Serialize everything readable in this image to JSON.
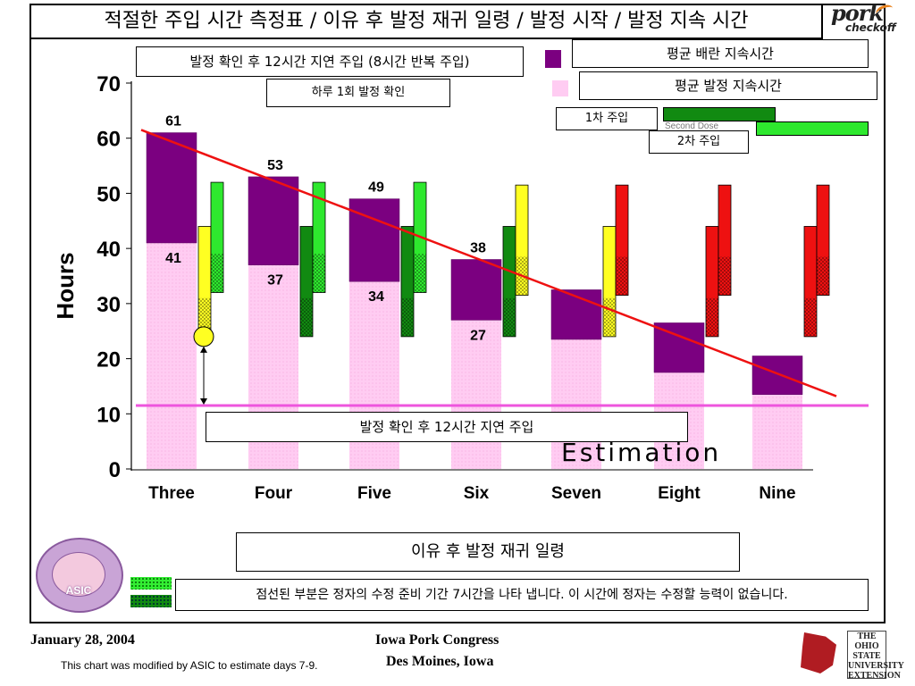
{
  "header": {
    "title": "적절한 주입 시간 측정표 / 이유 후 발정 재귀 일령 / 발정 시작 / 발정 지속 시간",
    "logo_main": "pork",
    "logo_sub": "checkoff"
  },
  "annotations": {
    "top_box": "발정 확인 후 12시간 지연 주입 (8시간 반복 주입)",
    "daily_check": "하루 1회 발정 확인",
    "mid_box": "발정 확인 후 12시간 지연 주입",
    "bottom_box": "이유 후 발정 재귀 일령",
    "note": "점선된 부분은 정자의 수정 준비 기간 7시간을 나타 냅니다. 이 시간에 정자는 수정할 능력이 없습니다.",
    "estimation": "Estimation"
  },
  "legend": {
    "ovulation": "평균 배란 지속시간",
    "estrus": "평균 발정 지속시간",
    "first_dose": "1차 주입",
    "second_dose": "2차 주입",
    "hidden_second_dose": "Second Dose",
    "colors": {
      "ovulation": "#7b0080",
      "estrus": "#ffccf2",
      "first_dose": "#118a11",
      "second_dose": "#2ee82e"
    }
  },
  "asic_logo": {
    "text": "ASIC"
  },
  "footer": {
    "date": "January 28, 2004",
    "note": "This chart was modified by ASIC to estimate days 7-9.",
    "event": "Iowa Pork Congress",
    "place": "Des Moines, Iowa",
    "osu_text": "THE OHIO STATE UNIVERSITY EXTENSION"
  },
  "chart_data": {
    "type": "bar",
    "ylabel": "Hours",
    "ylim": [
      0,
      70
    ],
    "yticks": [
      0,
      10,
      20,
      30,
      40,
      50,
      60,
      70
    ],
    "categories": [
      "Three",
      "Four",
      "Five",
      "Six",
      "Seven",
      "Eight",
      "Nine"
    ],
    "series": [
      {
        "name": "평균 발정 지속시간",
        "values": [
          61,
          53,
          49,
          38,
          32.5,
          26.5,
          20.5
        ],
        "color": "#ffccf2"
      },
      {
        "name": "평균 배란 지속시간",
        "values": [
          41,
          37,
          34,
          27,
          23.5,
          17.5,
          13.5
        ],
        "color": "#7b0080"
      }
    ],
    "labels": {
      "estrus_top": [
        61,
        53,
        49,
        38,
        null,
        null,
        null
      ],
      "ovulation_start": [
        41,
        37,
        34,
        27,
        null,
        null,
        null
      ]
    },
    "dose_ranges": [
      {
        "category": "Three",
        "first": [
          24,
          44
        ],
        "second": [
          32,
          52
        ],
        "first_color": "#ffff22",
        "second_color": "#2ee82e"
      },
      {
        "category": "Four",
        "first": [
          24,
          44
        ],
        "second": [
          32,
          52
        ],
        "first_color": "#118a11",
        "second_color": "#2ee82e"
      },
      {
        "category": "Five",
        "first": [
          24,
          44
        ],
        "second": [
          32,
          52
        ],
        "first_color": "#118a11",
        "second_color": "#2ee82e"
      },
      {
        "category": "Six",
        "first": [
          24,
          44
        ],
        "second": [
          31.5,
          51.5
        ],
        "first_color": "#118a11",
        "second_color": "#ffff22"
      },
      {
        "category": "Seven",
        "first": [
          24,
          44
        ],
        "second": [
          31.5,
          51.5
        ],
        "first_color": "#ffff22",
        "second_color": "#ee1111"
      },
      {
        "category": "Eight",
        "first": [
          24,
          44
        ],
        "second": [
          31.5,
          51.5
        ],
        "first_color": "#ee1111",
        "second_color": "#ee1111"
      },
      {
        "category": "Nine",
        "first": [
          24,
          44
        ],
        "second": [
          31.5,
          51.5
        ],
        "first_color": "#ee1111",
        "second_color": "#ee1111"
      }
    ],
    "trend_line": {
      "from": [
        "Three",
        61.5
      ],
      "to": [
        "Nine",
        13.2
      ],
      "color": "#ee1111"
    },
    "threshold_line": {
      "value": 11.5,
      "color": "#ee55dd"
    },
    "grid": false
  }
}
